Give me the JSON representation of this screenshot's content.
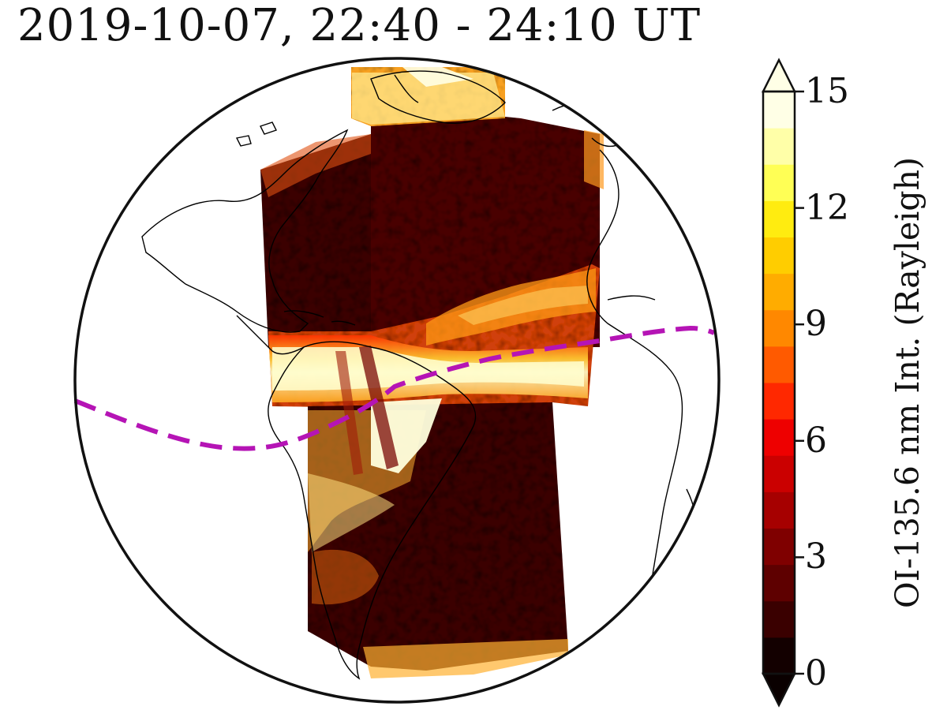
{
  "title": "2019-10-07, 22:40 - 24:10 UT",
  "map": {
    "projection": "orthographic globe",
    "overlay_color": "#b514b5",
    "overlay_style": "dashed line (magnetic equator)",
    "coastline_color": "#000000",
    "data_field": "OI-135.6 nm airglow intensity swaths over the Americas and Atlantic"
  },
  "colorbar": {
    "label": "OI-135.6 nm Int. (Rayleigh)",
    "range": [
      0,
      15
    ],
    "extend": "both",
    "ticks": [
      "0",
      "3",
      "6",
      "9",
      "12",
      "15"
    ],
    "tick_values": [
      0,
      3,
      6,
      9,
      12,
      15
    ],
    "colors": [
      "#130000",
      "#3a0000",
      "#5e0000",
      "#7f0000",
      "#a60000",
      "#cb0000",
      "#ee0000",
      "#ff2800",
      "#ff5a00",
      "#ff8800",
      "#ffac00",
      "#ffcd00",
      "#ffec10",
      "#ffff55",
      "#ffffa8",
      "#ffffe6"
    ]
  }
}
